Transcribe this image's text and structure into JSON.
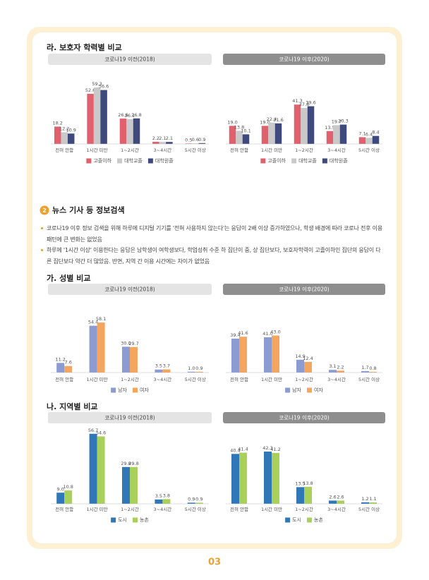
{
  "sections": [
    {
      "title": "라. 보호자 학력별 비교",
      "charts": [
        {
          "type": "bar",
          "title": "코로나19 이전(2018)",
          "categories": [
            "전혀 안함",
            "1시간 미만",
            "1~2시간",
            "3~4시간",
            "5시간 이상"
          ],
          "series": [
            {
              "name": "고졸이하",
              "color": "#e0606e",
              "values": [
                18.2,
                52.6,
                26.6,
                2.2,
                0.5
              ],
              "value_labels": [
                "18.2",
                "52.6",
                "26.6",
                "2.2",
                "0.5"
              ]
            },
            {
              "name": "대학교졸",
              "color": "#c9c9c9",
              "values": [
                12.2,
                59.3,
                26.1,
                2.1,
                0.6
              ],
              "value_labels": [
                "12.2",
                "59.3",
                "26.1",
                "2.1",
                "0.6"
              ]
            },
            {
              "name": "대학원졸",
              "color": "#3e4a7c",
              "values": [
                10.9,
                56.6,
                26.8,
                2.1,
                0.9
              ],
              "value_labels": [
                "10.9",
                "56.6",
                "26.8",
                "2.1",
                "0.9"
              ]
            }
          ]
        },
        {
          "type": "bar",
          "title": "코로나19 이후(2020)",
          "categories": [
            "전혀 안함",
            "1시간 미만",
            "1~2시간",
            "3~4시간",
            "5시간 이상"
          ],
          "series": [
            {
              "name": "고졸이하",
              "color": "#e0606e",
              "values": [
                19.0,
                19.0,
                41.3,
                13.5,
                7.1
              ],
              "value_labels": [
                "19.0",
                "19.0",
                "41.3",
                "13.5",
                "7.1"
              ]
            },
            {
              "name": "대학교졸",
              "color": "#c9c9c9",
              "values": [
                13.8,
                22.4,
                37.8,
                19.7,
                6.4
              ],
              "value_labels": [
                "13.8",
                "22.4",
                "37.8",
                "19.7",
                "6.4"
              ]
            },
            {
              "name": "대학원졸",
              "color": "#3e4a7c",
              "values": [
                10.1,
                21.6,
                39.6,
                20.3,
                8.4
              ],
              "value_labels": [
                "10.1",
                "21.6",
                "39.6",
                "20.3",
                "8.4"
              ]
            }
          ]
        }
      ]
    },
    {
      "title": "가. 성별 비교",
      "charts": [
        {
          "type": "bar",
          "title": "코로나19 이전(2018)",
          "categories": [
            "전혀 안함",
            "1시간 미만",
            "1~2시간",
            "3~4시간",
            "5시간 이상"
          ],
          "series": [
            {
              "name": "남자",
              "color": "#8d9bd3",
              "values": [
                11.2,
                54.4,
                30.0,
                3.5,
                1.0
              ],
              "value_labels": [
                "11.2",
                "54.4",
                "30.0",
                "3.5",
                "1.0"
              ]
            },
            {
              "name": "여자",
              "color": "#f4a55e",
              "values": [
                7.6,
                58.1,
                29.7,
                3.7,
                0.9
              ],
              "value_labels": [
                "7.6",
                "58.1",
                "29.7",
                "3.7",
                "0.9"
              ]
            }
          ]
        },
        {
          "type": "bar",
          "title": "코로나19 이후(2020)",
          "categories": [
            "전혀 안함",
            "1시간 미만",
            "1~2시간",
            "3~4시간",
            "5시간 이상"
          ],
          "series": [
            {
              "name": "남자",
              "color": "#8d9bd3",
              "values": [
                39.4,
                41.0,
                14.9,
                3.1,
                1.7
              ],
              "value_labels": [
                "39.4",
                "41.0",
                "14.9",
                "3.1",
                "1.7"
              ]
            },
            {
              "name": "여자",
              "color": "#f4a55e",
              "values": [
                41.6,
                43.0,
                12.4,
                2.2,
                0.8
              ],
              "value_labels": [
                "41.6",
                "43.0",
                "12.4",
                "2.2",
                "0.8"
              ]
            }
          ]
        }
      ]
    },
    {
      "title": "나. 지역별 비교",
      "charts": [
        {
          "type": "bar",
          "title": "코로나19 이전(2018)",
          "categories": [
            "전혀 안함",
            "1시간 미만",
            "1~2시간",
            "3~4시간",
            "5시간 이상"
          ],
          "series": [
            {
              "name": "도시",
              "color": "#2f77b7",
              "values": [
                9.0,
                56.7,
                29.8,
                3.5,
                0.9
              ],
              "value_labels": [
                "9.0",
                "56.7",
                "29.8",
                "3.5",
                "0.9"
              ]
            },
            {
              "name": "농촌",
              "color": "#a9d05b",
              "values": [
                10.8,
                54.6,
                29.8,
                3.8,
                0.9
              ],
              "value_labels": [
                "10.8",
                "54.6",
                "29.8",
                "3.8",
                "0.9"
              ]
            }
          ]
        },
        {
          "type": "bar",
          "title": "코로나19 이후(2020)",
          "categories": [
            "전혀 안함",
            "1시간 미만",
            "1~2시간",
            "3~4시간",
            "5시간 이상"
          ],
          "series": [
            {
              "name": "도시",
              "color": "#2f77b7",
              "values": [
                40.4,
                42.3,
                13.5,
                2.6,
                1.2
              ],
              "value_labels": [
                "40.4",
                "42.3",
                "13.5",
                "2.6",
                "1.2"
              ]
            },
            {
              "name": "농촌",
              "color": "#a9d05b",
              "values": [
                41.4,
                41.2,
                13.8,
                2.6,
                1.1
              ],
              "value_labels": [
                "41.4",
                "41.2",
                "13.8",
                "2.6",
                "1.1"
              ]
            }
          ]
        }
      ]
    }
  ],
  "news": {
    "number": "2",
    "heading": "뉴스 기사 등 정보검색",
    "bullets": [
      "코로나19 이후 정보 검색을 위해 하루에 디지털 기기를 '전혀 사용하지 않는다'는 응답이 2배 이상 증가하였으나, 학생 배경에 따라 코로나 전후 이용 패턴에 큰 변화는 없었음",
      "하루에 '1시간 이상' 이용한다는 응답은 남학생이 여학생보다, 학업성취 수준 하 집단이 중, 상 집단보다, 보호자학력이 고졸이하인 집단의 응답이 다른 집단보다 약간 더 많았음. 반면, 지역 간 이용 시간에는 차이가 없었음"
    ]
  },
  "page_number": "03"
}
